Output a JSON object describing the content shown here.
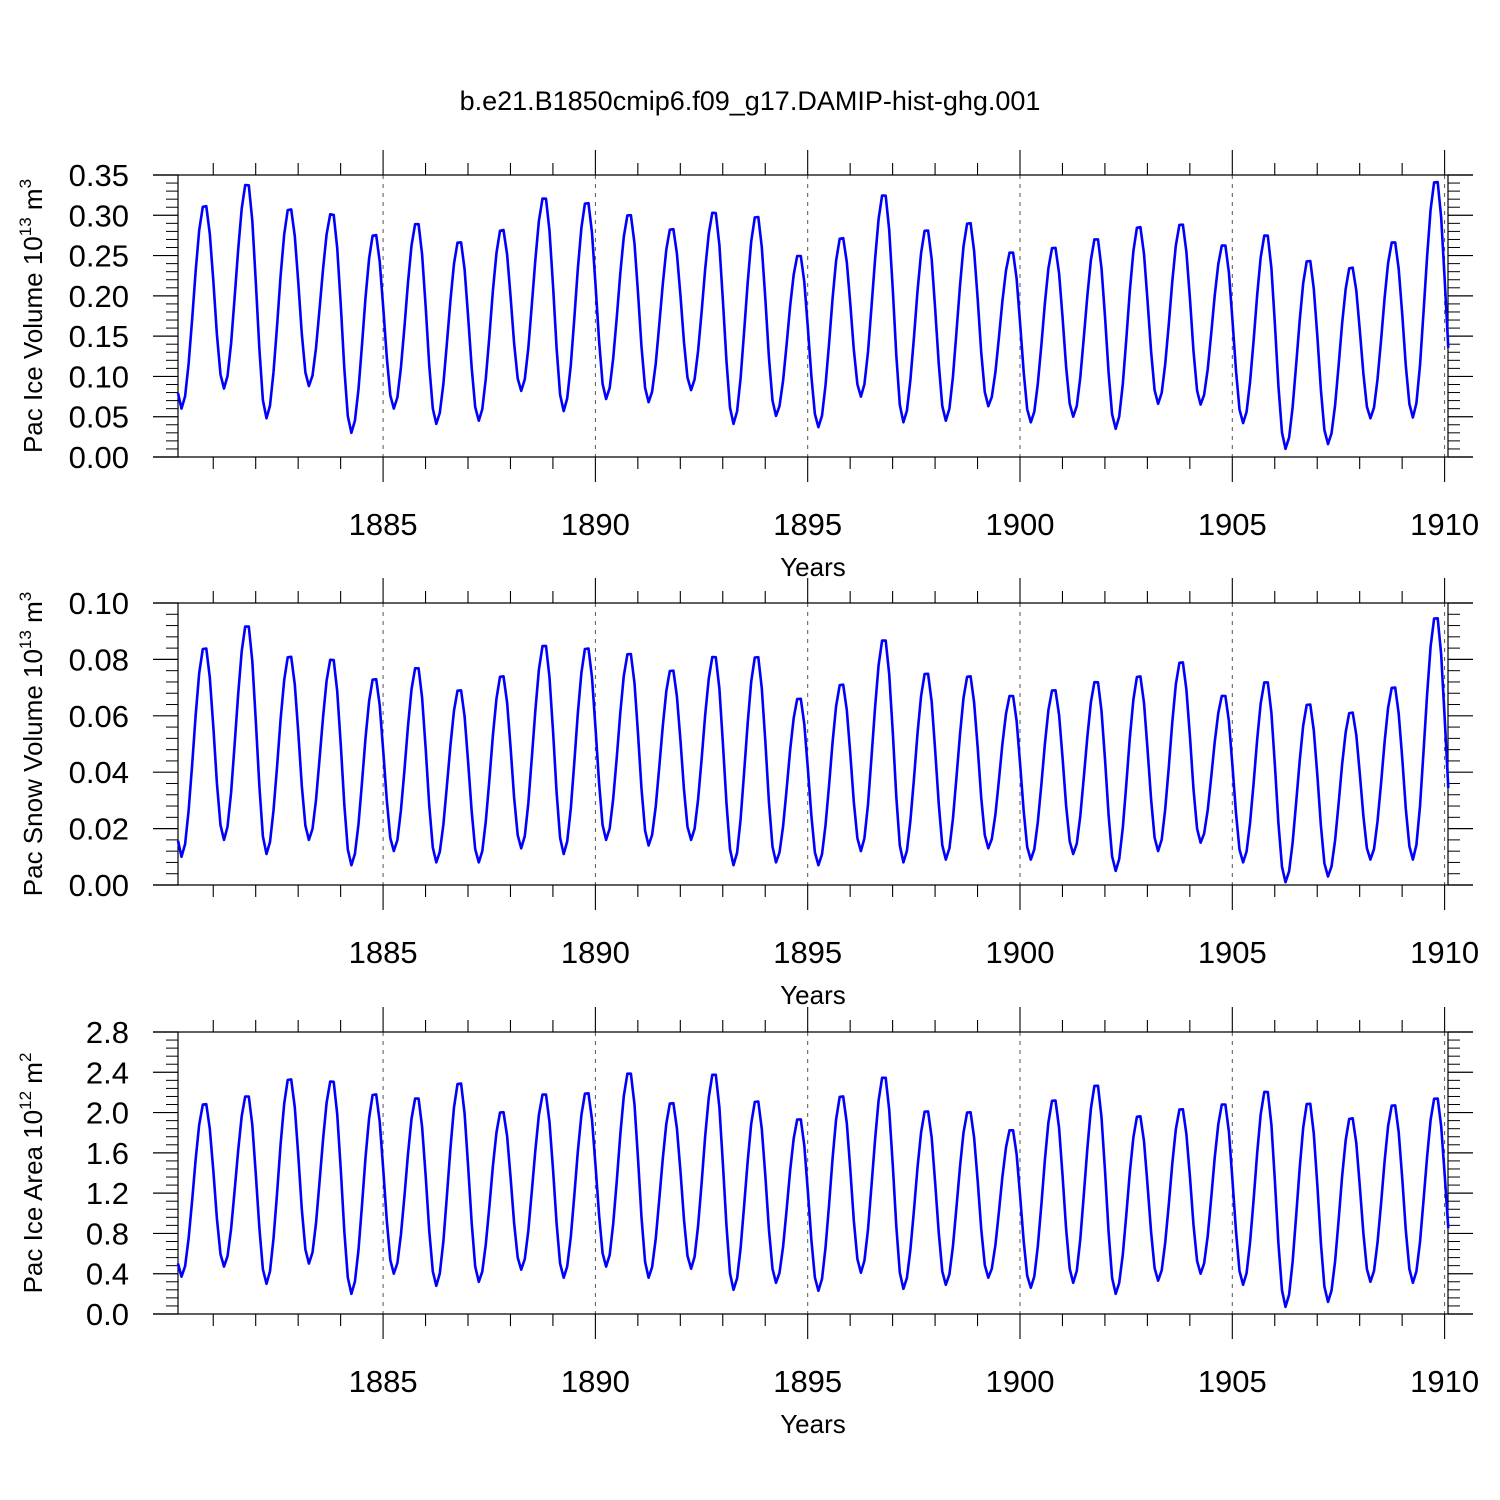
{
  "title": "b.e21.B1850cmip6.f09_g17.DAMIP-hist-ghg.001",
  "colors": {
    "series": "#0000ff",
    "axis": "#000000",
    "grid": "#555555"
  },
  "chart_data": [
    {
      "type": "line",
      "name": "ice-volume",
      "ylabel": {
        "main": "Pac Ice Volume 10",
        "sup": "13",
        "unit": " m",
        "unit_sup": "3"
      },
      "xlabel": "Years",
      "xlim": [
        1880.17,
        1910.08
      ],
      "ylim": [
        0.0,
        0.35
      ],
      "yticks": [
        0.0,
        0.05,
        0.1,
        0.15,
        0.2,
        0.25,
        0.3,
        0.35
      ],
      "ytick_labels": [
        "0.00",
        "0.05",
        "0.10",
        "0.15",
        "0.20",
        "0.25",
        "0.30",
        "0.35"
      ],
      "xticks": [
        1885,
        1890,
        1895,
        1900,
        1905,
        1910
      ],
      "xtick_labels": [
        "1885",
        "1890",
        "1895",
        "1900",
        "1905",
        "1910"
      ],
      "peaks": [
        0.315,
        0.342,
        0.311,
        0.305,
        0.279,
        0.293,
        0.27,
        0.285,
        0.325,
        0.319,
        0.304,
        0.286,
        0.307,
        0.302,
        0.253,
        0.275,
        0.329,
        0.285,
        0.294,
        0.257,
        0.263,
        0.274,
        0.289,
        0.292,
        0.266,
        0.279,
        0.247,
        0.238,
        0.27,
        0.346
      ],
      "troughs": [
        0.06,
        0.085,
        0.048,
        0.088,
        0.03,
        0.06,
        0.041,
        0.045,
        0.082,
        0.057,
        0.072,
        0.068,
        0.083,
        0.041,
        0.051,
        0.037,
        0.075,
        0.043,
        0.045,
        0.063,
        0.043,
        0.05,
        0.035,
        0.066,
        0.065,
        0.042,
        0.01,
        0.016,
        0.048,
        0.049
      ]
    },
    {
      "type": "line",
      "name": "snow-volume",
      "ylabel": {
        "main": "Pac Snow Volume 10",
        "sup": "13",
        "unit": " m",
        "unit_sup": "3"
      },
      "xlabel": "Years",
      "xlim": [
        1880.17,
        1910.08
      ],
      "ylim": [
        0.0,
        0.1
      ],
      "yticks": [
        0.0,
        0.02,
        0.04,
        0.06,
        0.08,
        0.1
      ],
      "ytick_labels": [
        "0.00",
        "0.02",
        "0.04",
        "0.06",
        "0.08",
        "0.10"
      ],
      "xticks": [
        1885,
        1890,
        1895,
        1900,
        1905,
        1910
      ],
      "xtick_labels": [
        "1885",
        "1890",
        "1895",
        "1900",
        "1905",
        "1910"
      ],
      "peaks": [
        0.085,
        0.093,
        0.082,
        0.081,
        0.074,
        0.078,
        0.07,
        0.075,
        0.086,
        0.085,
        0.083,
        0.077,
        0.082,
        0.082,
        0.067,
        0.072,
        0.088,
        0.076,
        0.075,
        0.068,
        0.07,
        0.073,
        0.075,
        0.08,
        0.068,
        0.073,
        0.065,
        0.062,
        0.071,
        0.096
      ],
      "troughs": [
        0.01,
        0.016,
        0.011,
        0.016,
        0.007,
        0.012,
        0.008,
        0.008,
        0.013,
        0.011,
        0.016,
        0.014,
        0.016,
        0.007,
        0.008,
        0.007,
        0.012,
        0.008,
        0.009,
        0.013,
        0.009,
        0.011,
        0.005,
        0.012,
        0.015,
        0.008,
        0.001,
        0.003,
        0.009,
        0.009
      ]
    },
    {
      "type": "line",
      "name": "ice-area",
      "ylabel": {
        "main": "Pac Ice Area 10",
        "sup": "12",
        "unit": " m",
        "unit_sup": "2"
      },
      "xlabel": "Years",
      "xlim": [
        1880.17,
        1910.08
      ],
      "ylim": [
        0.0,
        2.8
      ],
      "yticks": [
        0.0,
        0.4,
        0.8,
        1.2,
        1.6,
        2.0,
        2.4,
        2.8
      ],
      "ytick_labels": [
        "0.0",
        "0.4",
        "0.8",
        "1.2",
        "1.6",
        "2.0",
        "2.4",
        "2.8"
      ],
      "xticks": [
        1885,
        1890,
        1895,
        1900,
        1905,
        1910
      ],
      "xtick_labels": [
        "1885",
        "1890",
        "1895",
        "1900",
        "1905",
        "1910"
      ],
      "peaks": [
        2.11,
        2.19,
        2.36,
        2.34,
        2.21,
        2.17,
        2.32,
        2.03,
        2.21,
        2.22,
        2.42,
        2.12,
        2.41,
        2.14,
        1.96,
        2.19,
        2.38,
        2.04,
        2.03,
        1.85,
        2.15,
        2.3,
        1.99,
        2.06,
        2.11,
        2.24,
        2.12,
        1.97,
        2.1,
        2.17
      ],
      "troughs": [
        0.37,
        0.47,
        0.3,
        0.5,
        0.2,
        0.4,
        0.28,
        0.32,
        0.44,
        0.36,
        0.47,
        0.36,
        0.45,
        0.24,
        0.31,
        0.23,
        0.41,
        0.25,
        0.29,
        0.36,
        0.26,
        0.31,
        0.2,
        0.33,
        0.4,
        0.29,
        0.07,
        0.12,
        0.32,
        0.31
      ]
    }
  ]
}
